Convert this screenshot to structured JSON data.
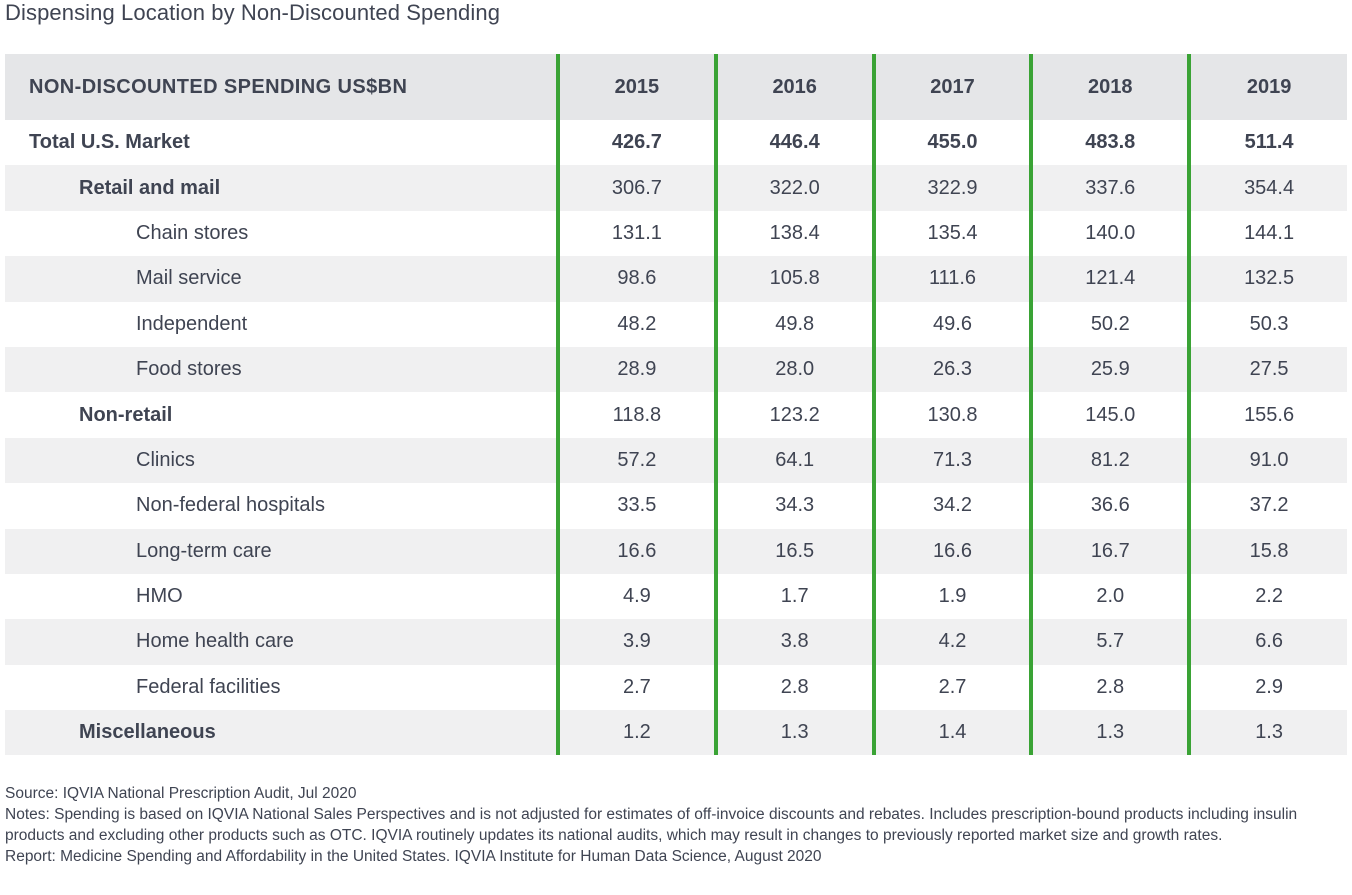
{
  "title": "Dispensing Location by Non-Discounted Spending",
  "chart_data": {
    "type": "table",
    "title": "Dispensing Location by Non-Discounted Spending",
    "row_header": "NON-DISCOUNTED SPENDING US$BN",
    "columns": [
      "2015",
      "2016",
      "2017",
      "2018",
      "2019"
    ],
    "rows": [
      {
        "label": "Total U.S. Market",
        "level": 0,
        "values": [
          "426.7",
          "446.4",
          "455.0",
          "483.8",
          "511.4"
        ]
      },
      {
        "label": "Retail and mail",
        "level": 1,
        "values": [
          "306.7",
          "322.0",
          "322.9",
          "337.6",
          "354.4"
        ]
      },
      {
        "label": "Chain stores",
        "level": 2,
        "values": [
          "131.1",
          "138.4",
          "135.4",
          "140.0",
          "144.1"
        ]
      },
      {
        "label": "Mail service",
        "level": 2,
        "values": [
          "98.6",
          "105.8",
          "111.6",
          "121.4",
          "132.5"
        ]
      },
      {
        "label": "Independent",
        "level": 2,
        "values": [
          "48.2",
          "49.8",
          "49.6",
          "50.2",
          "50.3"
        ]
      },
      {
        "label": "Food stores",
        "level": 2,
        "values": [
          "28.9",
          "28.0",
          "26.3",
          "25.9",
          "27.5"
        ]
      },
      {
        "label": "Non-retail",
        "level": 1,
        "values": [
          "118.8",
          "123.2",
          "130.8",
          "145.0",
          "155.6"
        ]
      },
      {
        "label": "Clinics",
        "level": 2,
        "values": [
          "57.2",
          "64.1",
          "71.3",
          "81.2",
          "91.0"
        ]
      },
      {
        "label": "Non-federal hospitals",
        "level": 2,
        "values": [
          "33.5",
          "34.3",
          "34.2",
          "36.6",
          "37.2"
        ]
      },
      {
        "label": "Long-term care",
        "level": 2,
        "values": [
          "16.6",
          "16.5",
          "16.6",
          "16.7",
          "15.8"
        ]
      },
      {
        "label": "HMO",
        "level": 2,
        "values": [
          "4.9",
          "1.7",
          "1.9",
          "2.0",
          "2.2"
        ]
      },
      {
        "label": "Home health care",
        "level": 2,
        "values": [
          "3.9",
          "3.8",
          "4.2",
          "5.7",
          "6.6"
        ]
      },
      {
        "label": "Federal facilities",
        "level": 2,
        "values": [
          "2.7",
          "2.8",
          "2.7",
          "2.8",
          "2.9"
        ]
      },
      {
        "label": "Miscellaneous",
        "level": 1,
        "values": [
          "1.2",
          "1.3",
          "1.4",
          "1.3",
          "1.3"
        ]
      }
    ]
  },
  "footnotes": {
    "source": "Source: IQVIA National Prescription Audit, Jul 2020",
    "notes": "Notes: Spending is based on IQVIA National Sales Perspectives and is not adjusted for estimates of off-invoice discounts and rebates. Includes prescription-bound products including insulin products and excluding other products such as OTC. IQVIA routinely updates its national audits, which may result in changes to previously reported market size and growth rates.",
    "report": "Report: Medicine Spending and Affordability in the United States. IQVIA Institute for Human Data Science, August 2020"
  },
  "colors": {
    "divider": "#3aa335",
    "header_bg": "#e5e6e8",
    "stripe_bg": "#f0f0f1",
    "text": "#3f4452"
  }
}
